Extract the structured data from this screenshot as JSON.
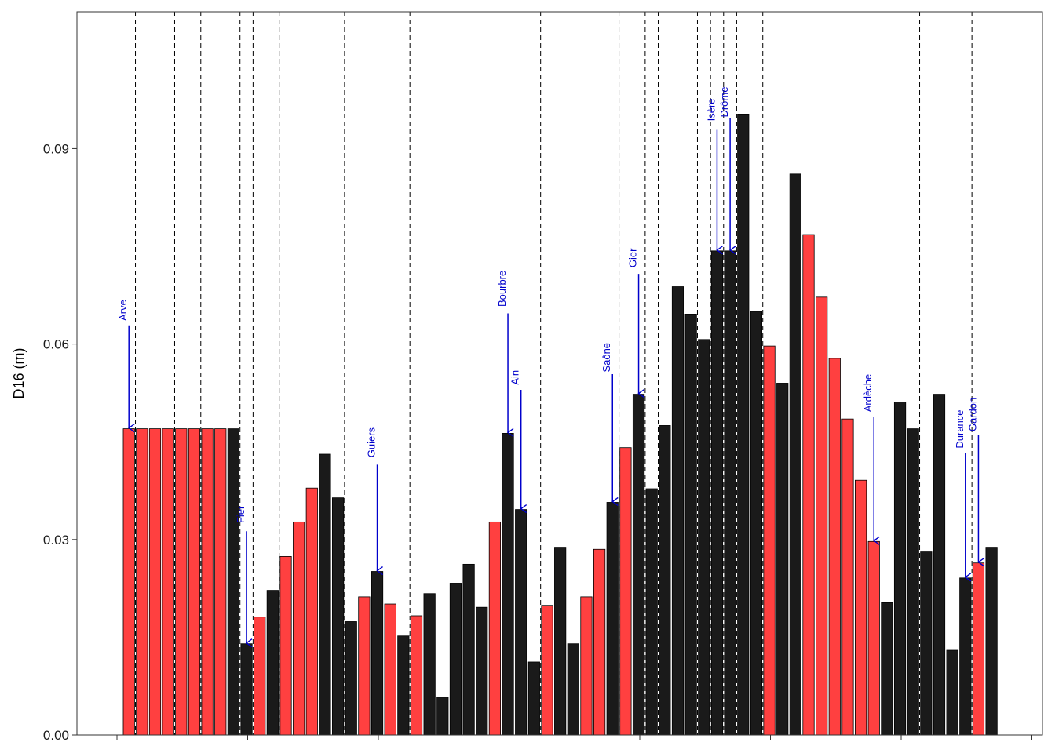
{
  "colors": {
    "red": "#ff4040",
    "black": "#1a1a1a",
    "annotation": "#0000cc",
    "boundary": "#000000"
  },
  "chart_data": {
    "type": "bar",
    "title": "",
    "xlabel": "",
    "ylabel": "D16 (m)",
    "ylim": [
      0,
      0.111
    ],
    "yticks": [
      0.0,
      0.03,
      0.06,
      0.09
    ],
    "ytick_labels": [
      "0.00",
      "0.03",
      "0.06",
      "0.09"
    ],
    "x_major_ticks": [
      0,
      10,
      20,
      30,
      40,
      50,
      60,
      70
    ],
    "grid": false,
    "legend": "none",
    "bars": [
      {
        "value": 0.047,
        "color": "red"
      },
      {
        "value": 0.047,
        "color": "red"
      },
      {
        "value": 0.047,
        "color": "red"
      },
      {
        "value": 0.047,
        "color": "red"
      },
      {
        "value": 0.047,
        "color": "red"
      },
      {
        "value": 0.047,
        "color": "red"
      },
      {
        "value": 0.047,
        "color": "red"
      },
      {
        "value": 0.047,
        "color": "red"
      },
      {
        "value": 0.047,
        "color": "black"
      },
      {
        "value": 0.014,
        "color": "black"
      },
      {
        "value": 0.0181,
        "color": "red"
      },
      {
        "value": 0.0222,
        "color": "black"
      },
      {
        "value": 0.0274,
        "color": "red"
      },
      {
        "value": 0.0327,
        "color": "red"
      },
      {
        "value": 0.0379,
        "color": "red"
      },
      {
        "value": 0.0431,
        "color": "black"
      },
      {
        "value": 0.0364,
        "color": "black"
      },
      {
        "value": 0.0174,
        "color": "black"
      },
      {
        "value": 0.0212,
        "color": "red"
      },
      {
        "value": 0.0251,
        "color": "black"
      },
      {
        "value": 0.0201,
        "color": "red"
      },
      {
        "value": 0.0152,
        "color": "black"
      },
      {
        "value": 0.0183,
        "color": "red"
      },
      {
        "value": 0.0217,
        "color": "black"
      },
      {
        "value": 0.0058,
        "color": "black"
      },
      {
        "value": 0.0233,
        "color": "black"
      },
      {
        "value": 0.0262,
        "color": "black"
      },
      {
        "value": 0.0196,
        "color": "black"
      },
      {
        "value": 0.0327,
        "color": "red"
      },
      {
        "value": 0.0463,
        "color": "black"
      },
      {
        "value": 0.0346,
        "color": "black"
      },
      {
        "value": 0.0112,
        "color": "black"
      },
      {
        "value": 0.0199,
        "color": "red"
      },
      {
        "value": 0.0287,
        "color": "black"
      },
      {
        "value": 0.014,
        "color": "black"
      },
      {
        "value": 0.0212,
        "color": "red"
      },
      {
        "value": 0.0285,
        "color": "red"
      },
      {
        "value": 0.0357,
        "color": "black"
      },
      {
        "value": 0.0441,
        "color": "red"
      },
      {
        "value": 0.0523,
        "color": "black"
      },
      {
        "value": 0.0378,
        "color": "black"
      },
      {
        "value": 0.0475,
        "color": "black"
      },
      {
        "value": 0.0688,
        "color": "black"
      },
      {
        "value": 0.0646,
        "color": "black"
      },
      {
        "value": 0.0607,
        "color": "black"
      },
      {
        "value": 0.0743,
        "color": "black"
      },
      {
        "value": 0.0743,
        "color": "black"
      },
      {
        "value": 0.0953,
        "color": "black"
      },
      {
        "value": 0.065,
        "color": "black"
      },
      {
        "value": 0.0597,
        "color": "red"
      },
      {
        "value": 0.054,
        "color": "black"
      },
      {
        "value": 0.0861,
        "color": "black"
      },
      {
        "value": 0.0768,
        "color": "red"
      },
      {
        "value": 0.0672,
        "color": "red"
      },
      {
        "value": 0.0578,
        "color": "red"
      },
      {
        "value": 0.0485,
        "color": "red"
      },
      {
        "value": 0.0391,
        "color": "red"
      },
      {
        "value": 0.0297,
        "color": "red"
      },
      {
        "value": 0.0203,
        "color": "black"
      },
      {
        "value": 0.0511,
        "color": "black"
      },
      {
        "value": 0.047,
        "color": "black"
      },
      {
        "value": 0.0281,
        "color": "black"
      },
      {
        "value": 0.0523,
        "color": "black"
      },
      {
        "value": 0.013,
        "color": "black"
      },
      {
        "value": 0.0241,
        "color": "black"
      },
      {
        "value": 0.0264,
        "color": "red"
      },
      {
        "value": 0.0287,
        "color": "black"
      }
    ],
    "boundaries_after_bar": [
      0,
      3,
      5,
      8,
      9,
      11,
      16,
      21,
      31,
      37,
      39,
      40,
      43,
      44,
      45,
      46,
      48,
      60,
      64
    ],
    "annotations": [
      {
        "label": "Arve",
        "bar_index": 0,
        "label_top": 0.0668
      },
      {
        "label": "Fier",
        "bar_index": 9,
        "label_top": 0.0352
      },
      {
        "label": "Guiers",
        "bar_index": 19,
        "label_top": 0.0472
      },
      {
        "label": "Bourbre",
        "bar_index": 29,
        "label_top": 0.0713
      },
      {
        "label": "Ain",
        "bar_index": 30,
        "label_top": 0.056
      },
      {
        "label": "Saône",
        "bar_index": 37,
        "label_top": 0.0602
      },
      {
        "label": "Gier",
        "bar_index": 39,
        "label_top": 0.0747
      },
      {
        "label": "Isère",
        "bar_index": 45,
        "label_top": 0.0977
      },
      {
        "label": "Drôme",
        "bar_index": 46,
        "label_top": 0.0995
      },
      {
        "label": "Ardèche",
        "bar_index": 57,
        "label_top": 0.0554
      },
      {
        "label": "Durance",
        "bar_index": 64,
        "label_top": 0.0499
      },
      {
        "label": "Gardon",
        "bar_index": 65,
        "label_top": 0.0518
      }
    ]
  }
}
